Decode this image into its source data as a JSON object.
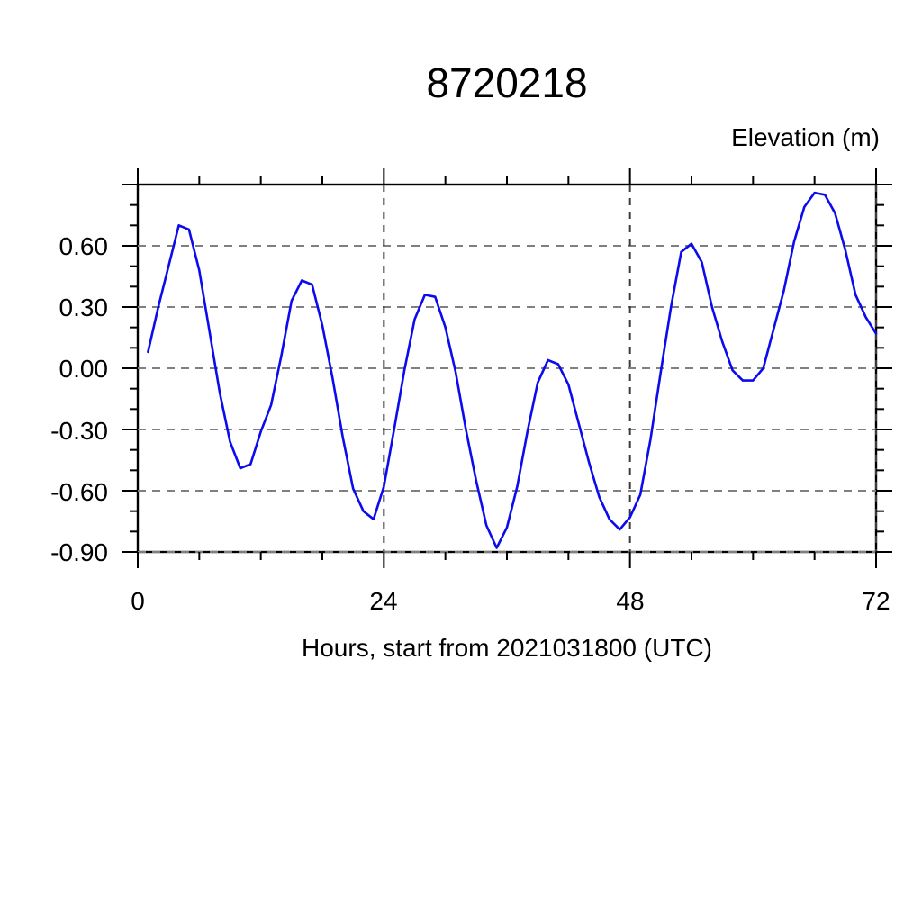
{
  "page": {
    "background": "#ffffff"
  },
  "chart_data": {
    "type": "line",
    "title": "8720218",
    "y_axis_label": "Elevation (m)",
    "x_axis_label": "Hours, start from 2021031800 (UTC)",
    "xlim": [
      0,
      72
    ],
    "ylim": [
      -0.9,
      0.9
    ],
    "x_ticks": [
      0,
      24,
      48,
      72
    ],
    "x_tick_labels": [
      "0",
      "24",
      "48",
      "72"
    ],
    "x_minor_step": 6,
    "y_tick_values": [
      0.6,
      0.3,
      0.0,
      -0.3,
      -0.6,
      -0.9
    ],
    "y_tick_labels": [
      "0.60",
      "0.30",
      "0.00",
      "-0.30",
      "-0.60",
      "-0.90"
    ],
    "y_minor_step": 0.1,
    "grid": "dashed",
    "grid_color_horizontal": "#808080",
    "grid_color_vertical": "#3c3c3c",
    "frame_color": "#000000",
    "line_color": "#0b0bee",
    "series_name": "elevation",
    "x": [
      1,
      2,
      3,
      4,
      5,
      6,
      7,
      8,
      9,
      10,
      11,
      12,
      13,
      14,
      15,
      16,
      17,
      18,
      19,
      20,
      21,
      22,
      23,
      24,
      25,
      26,
      27,
      28,
      29,
      30,
      31,
      32,
      33,
      34,
      35,
      36,
      37,
      38,
      39,
      40,
      41,
      42,
      43,
      44,
      45,
      46,
      47,
      48,
      49,
      50,
      51,
      52,
      53,
      54,
      55,
      56,
      57,
      58,
      59,
      60,
      61,
      62,
      63,
      64,
      65,
      66,
      67,
      68,
      69,
      70,
      71,
      72
    ],
    "values": [
      0.08,
      0.3,
      0.5,
      0.7,
      0.68,
      0.48,
      0.18,
      -0.12,
      -0.36,
      -0.49,
      -0.47,
      -0.31,
      -0.18,
      0.06,
      0.33,
      0.43,
      0.41,
      0.21,
      -0.05,
      -0.34,
      -0.59,
      -0.7,
      -0.74,
      -0.58,
      -0.3,
      -0.01,
      0.24,
      0.36,
      0.35,
      0.2,
      -0.02,
      -0.3,
      -0.55,
      -0.77,
      -0.88,
      -0.78,
      -0.58,
      -0.31,
      -0.07,
      0.04,
      0.02,
      -0.08,
      -0.27,
      -0.46,
      -0.63,
      -0.74,
      -0.79,
      -0.73,
      -0.62,
      -0.35,
      -0.02,
      0.3,
      0.57,
      0.61,
      0.52,
      0.3,
      0.13,
      -0.01,
      -0.06,
      -0.06,
      0.0,
      0.19,
      0.38,
      0.62,
      0.79,
      0.86,
      0.85,
      0.76,
      0.58,
      0.36,
      0.25,
      0.17
    ]
  }
}
